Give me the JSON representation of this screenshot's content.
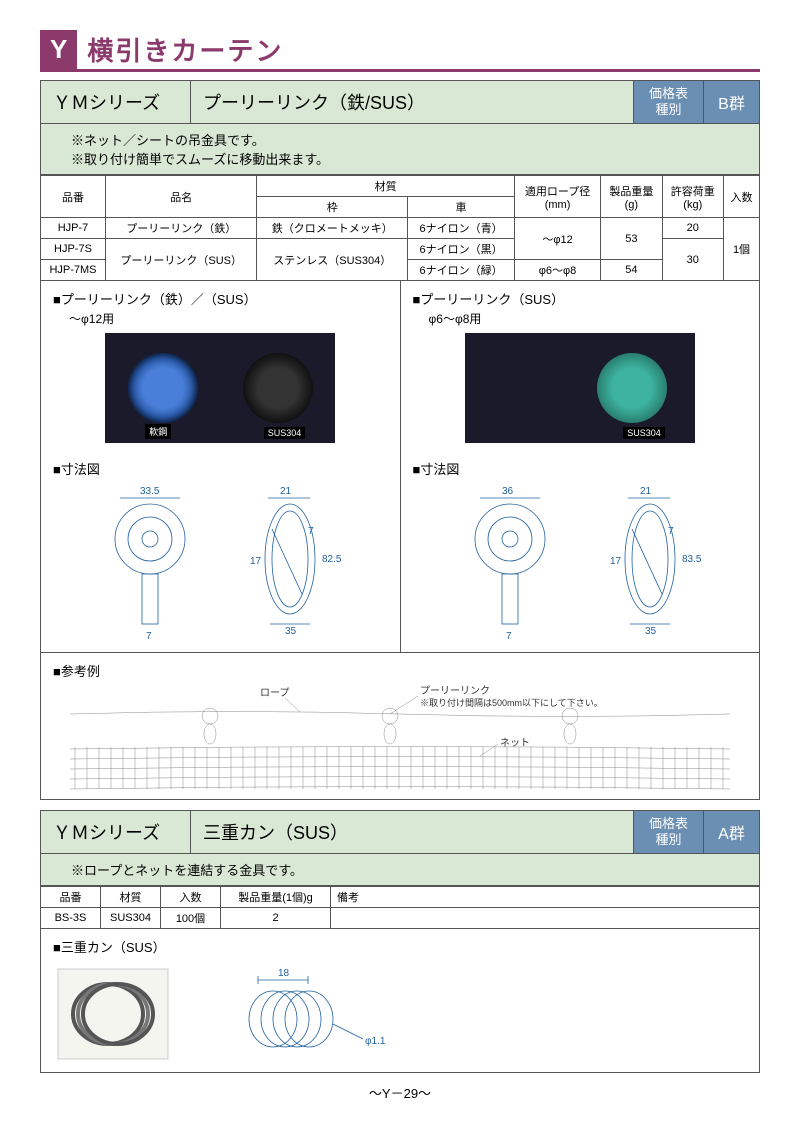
{
  "page": {
    "badge": "Y",
    "title": "横引きカーテン",
    "footer": "～Y－29～"
  },
  "section1": {
    "series": "ＹＭシリーズ",
    "product": "プーリーリンク（鉄/SUS）",
    "price_label1": "価格表",
    "price_label2": "種別",
    "group": "B群",
    "note1": "※ネット／シートの吊金具です。",
    "note2": "※取り付け簡単でスムーズに移動出来ます。",
    "headers": {
      "code": "品番",
      "name": "品名",
      "material": "材質",
      "frame": "枠",
      "wheel": "車",
      "rope": "適用ロープ径\n(mm)",
      "weight": "製品重量\n(g)",
      "load": "許容荷重\n(kg)",
      "qty": "入数"
    },
    "rows": [
      {
        "code": "HJP-7",
        "name": "プーリーリンク（鉄）",
        "frame": "鉄（クロメートメッキ）",
        "wheel": "6ナイロン（青）",
        "rope": "～φ12",
        "weight": "53",
        "load": "20",
        "qty": "1個"
      },
      {
        "code": "HJP-7S",
        "name": "プーリーリンク（SUS）",
        "frame": "ステンレス（SUS304）",
        "wheel": "6ナイロン（黒）",
        "rope": "～φ12",
        "weight": "53",
        "load": "30",
        "qty": "1個"
      },
      {
        "code": "HJP-7MS",
        "name": "プーリーリンク（SUS）",
        "frame": "ステンレス（SUS304）",
        "wheel": "6ナイロン（緑）",
        "rope": "φ6～φ8",
        "weight": "54",
        "load": "30",
        "qty": "1個"
      }
    ],
    "img_left_title": "■プーリーリンク（鉄）／（SUS）",
    "img_left_sub": "～φ12用",
    "img_right_title": "■プーリーリンク（SUS）",
    "img_right_sub": "φ6～φ8用",
    "label_steel": "軟鋼",
    "label_sus": "SUS304",
    "dim_label": "■寸法図",
    "dims_left": {
      "w1": "33.5",
      "w2": "21",
      "h": "82.5",
      "h2": "17",
      "t": "7",
      "b": "35",
      "bt": "7"
    },
    "dims_right": {
      "w1": "36",
      "w2": "21",
      "h": "83.5",
      "h2": "17",
      "t": "7",
      "b": "35",
      "bt": "7"
    },
    "ref_label": "■参考例",
    "ref_rope": "ロープ",
    "ref_pulley": "プーリーリンク",
    "ref_note": "※取り付け間隔は500mm以下にして下さい。",
    "ref_net": "ネット"
  },
  "section2": {
    "series": "ＹＭシリーズ",
    "product": "三重カン（SUS）",
    "price_label1": "価格表",
    "price_label2": "種別",
    "group": "A群",
    "note1": "※ロープとネットを連結する金具です。",
    "headers": {
      "code": "品番",
      "material": "材質",
      "qty": "入数",
      "weight": "製品重量(1個)g",
      "remark": "備考"
    },
    "row": {
      "code": "BS-3S",
      "material": "SUS304",
      "qty": "100個",
      "weight": "2",
      "remark": ""
    },
    "img_title": "■三重カン（SUS）",
    "dim_w": "18",
    "dim_d": "φ1.1"
  },
  "colors": {
    "brand": "#8b3a6b",
    "header_bg": "#d9e8d4",
    "badge_bg": "#6b8fb3",
    "border": "#555555",
    "dim_line": "#2060a0"
  }
}
